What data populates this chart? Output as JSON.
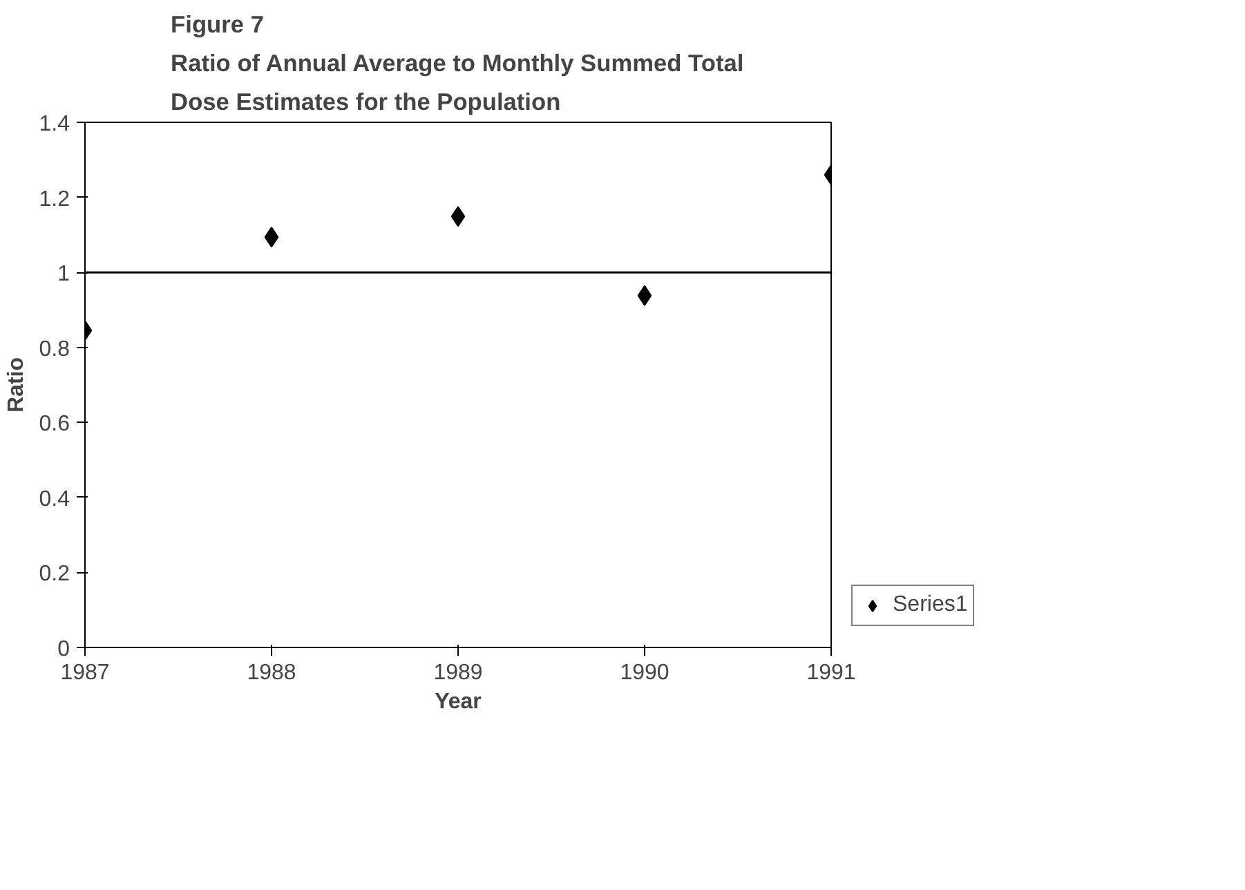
{
  "chart_data": {
    "type": "scatter",
    "title": "Figure 7\nRatio of Annual Average to Monthly Summed Total\nDose Estimates for the Population",
    "xlabel": "Year",
    "ylabel": "Ratio",
    "x": [
      1987,
      1988,
      1989,
      1990,
      1991
    ],
    "series": [
      {
        "name": "Series1",
        "color": "#000000",
        "values": [
          0.845,
          1.094,
          1.149,
          0.938,
          1.26
        ]
      }
    ],
    "xlim": [
      1987,
      1991
    ],
    "xticks": [
      1987,
      1988,
      1989,
      1990,
      1991
    ],
    "ylim": [
      0,
      1.4
    ],
    "yticks": [
      0,
      0.2,
      0.4,
      0.6,
      0.8,
      1,
      1.2,
      1.4
    ],
    "ref_lines": [
      {
        "axis": "y",
        "value": 1,
        "color": "#000000"
      }
    ],
    "grid": false,
    "legend": "right",
    "marker": "diamond"
  }
}
